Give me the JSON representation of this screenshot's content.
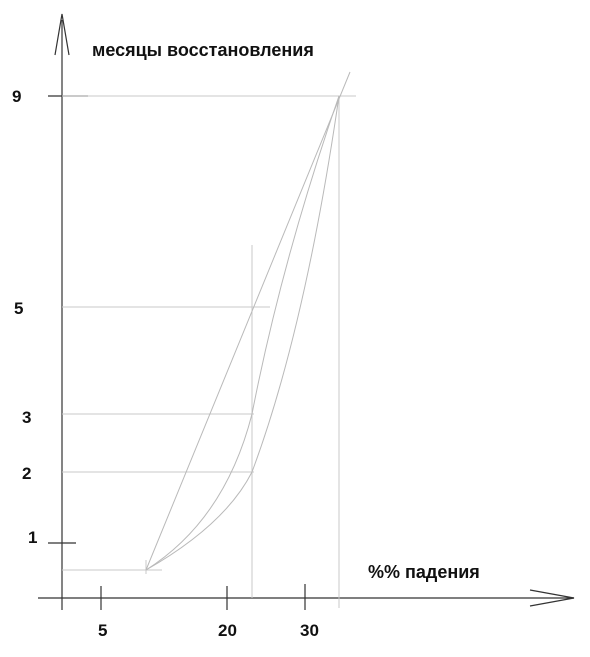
{
  "chart_data": {
    "type": "line",
    "ylabel": "месяцы восстановления",
    "xlabel": "%% падения",
    "x_ticks": [
      "5",
      "20",
      "30"
    ],
    "y_ticks": [
      "1",
      "2",
      "3",
      "5",
      "9"
    ],
    "series": [
      {
        "shape": "linear",
        "points": [
          [
            10,
            0.6
          ],
          [
            25,
            5
          ],
          [
            34,
            9
          ]
        ]
      },
      {
        "shape": "convex-mid",
        "points": [
          [
            10,
            0.6
          ],
          [
            25,
            3
          ],
          [
            34,
            9
          ]
        ]
      },
      {
        "shape": "convex-steep",
        "points": [
          [
            10,
            0.6
          ],
          [
            25,
            2
          ],
          [
            34,
            9
          ]
        ]
      }
    ],
    "grid": false
  }
}
